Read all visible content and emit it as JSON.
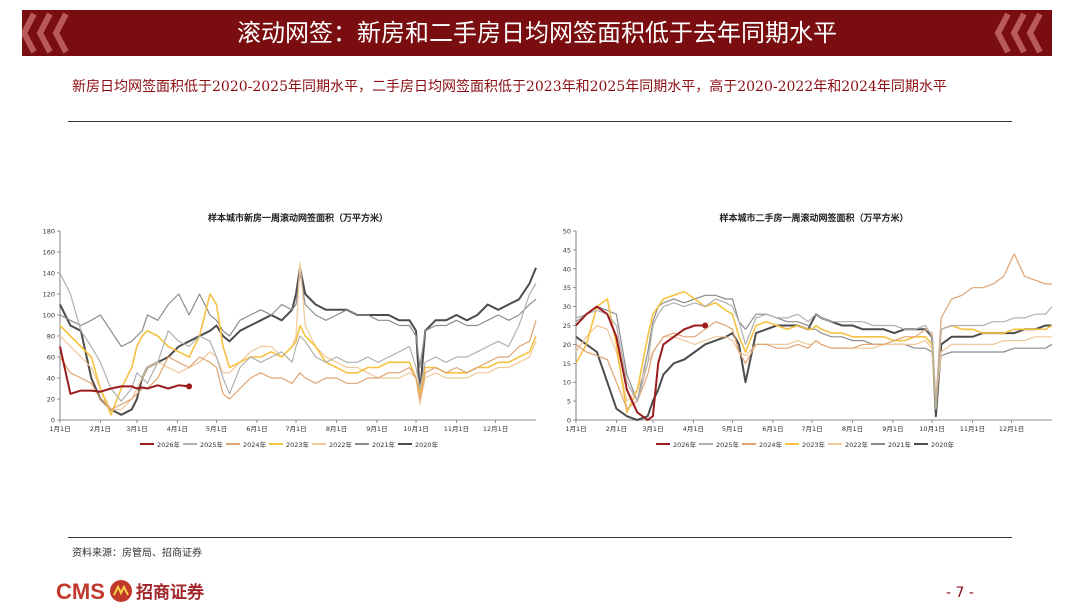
{
  "header": {
    "title": "滚动网签：新房和二手房日均网签面积低于去年同期水平"
  },
  "subtitle": "新房日均网签面积低于2020-2025年同期水平，二手房日均网签面积低于2023年和2025年同期水平，高于2020-2022年和2024年同期水平",
  "footer": {
    "source": "资料来源：房管局、招商证券",
    "logo_text": "CMS",
    "logo_cn": "招商证券",
    "page_number": "- 7 -"
  },
  "colors": {
    "banner": "#7a0d10",
    "accent": "#8b0d12"
  },
  "chart_data": [
    {
      "type": "line",
      "title": "样本城市新房一周滚动网签面积（万平方米）",
      "ylim": [
        0,
        180
      ],
      "yticks": [
        "0",
        "20",
        "40",
        "60",
        "80",
        "100",
        "120",
        "140",
        "160",
        "180"
      ],
      "xticks": [
        "1月1日",
        "2月1日",
        "3月1日",
        "4月1日",
        "5月1日",
        "6月1日",
        "7月1日",
        "8月1日",
        "9月1日",
        "10月1日",
        "11月1日",
        "12月1日"
      ],
      "x_points": [
        0,
        8,
        16,
        24,
        31,
        39,
        47,
        55,
        59,
        63,
        67,
        75,
        83,
        91,
        99,
        107,
        115,
        120,
        125,
        130,
        138,
        146,
        154,
        162,
        170,
        178,
        181,
        184,
        188,
        196,
        204,
        212,
        220,
        228,
        236,
        244,
        252,
        260,
        268,
        273,
        276,
        280,
        288,
        296,
        304,
        312,
        320,
        328,
        336,
        344,
        352,
        360,
        365
      ],
      "series": [
        {
          "name": "2026年",
          "color": "#9b1b1e",
          "width": 2,
          "values": [
            70,
            25,
            28,
            28,
            27,
            30,
            32,
            32,
            30,
            31,
            30,
            33,
            30,
            33,
            32
          ]
        },
        {
          "name": "2025年",
          "color": "#b0b0b0",
          "width": 1.2,
          "values": [
            140,
            120,
            85,
            70,
            55,
            30,
            18,
            30,
            45,
            40,
            35,
            55,
            85,
            75,
            70,
            80,
            75,
            60,
            40,
            25,
            50,
            60,
            55,
            60,
            65,
            55,
            70,
            80,
            75,
            60,
            55,
            60,
            55,
            55,
            60,
            55,
            60,
            65,
            70,
            50,
            30,
            55,
            60,
            55,
            60,
            60,
            65,
            70,
            75,
            70,
            90,
            120,
            130
          ]
        },
        {
          "name": "2024年",
          "color": "#e0a472",
          "width": 1.2,
          "values": [
            60,
            45,
            40,
            35,
            20,
            10,
            15,
            20,
            25,
            30,
            30,
            40,
            60,
            55,
            50,
            60,
            55,
            50,
            25,
            20,
            30,
            40,
            45,
            40,
            40,
            35,
            40,
            45,
            40,
            35,
            40,
            40,
            35,
            35,
            40,
            40,
            45,
            45,
            50,
            40,
            20,
            45,
            50,
            45,
            50,
            45,
            50,
            55,
            60,
            60,
            70,
            75,
            95
          ]
        },
        {
          "name": "2023年",
          "color": "#f5c242",
          "width": 1.6,
          "values": [
            90,
            80,
            70,
            60,
            30,
            5,
            30,
            50,
            70,
            80,
            85,
            80,
            70,
            65,
            60,
            80,
            120,
            110,
            70,
            50,
            55,
            60,
            60,
            65,
            60,
            70,
            75,
            90,
            80,
            70,
            55,
            50,
            45,
            45,
            50,
            50,
            55,
            55,
            55,
            40,
            25,
            50,
            50,
            45,
            45,
            45,
            50,
            50,
            55,
            55,
            60,
            65,
            80
          ]
        },
        {
          "name": "2022年",
          "color": "#f0c89a",
          "width": 1.2,
          "values": [
            80,
            70,
            60,
            50,
            30,
            10,
            10,
            20,
            30,
            40,
            50,
            55,
            50,
            45,
            50,
            55,
            65,
            60,
            45,
            45,
            55,
            65,
            70,
            70,
            60,
            70,
            80,
            150,
            90,
            70,
            60,
            55,
            50,
            50,
            45,
            40,
            40,
            40,
            45,
            40,
            15,
            40,
            45,
            40,
            40,
            40,
            45,
            45,
            50,
            50,
            55,
            60,
            75
          ]
        },
        {
          "name": "2021年",
          "color": "#8c8c8c",
          "width": 1.2,
          "values": [
            100,
            95,
            90,
            95,
            100,
            85,
            70,
            75,
            80,
            85,
            100,
            95,
            110,
            120,
            100,
            120,
            100,
            95,
            85,
            80,
            95,
            100,
            105,
            100,
            110,
            105,
            110,
            140,
            110,
            100,
            95,
            100,
            105,
            100,
            100,
            95,
            95,
            90,
            90,
            80,
            50,
            85,
            90,
            90,
            95,
            90,
            90,
            95,
            100,
            95,
            100,
            110,
            115
          ]
        },
        {
          "name": "2020年",
          "color": "#4d4d4d",
          "width": 2,
          "values": [
            110,
            90,
            85,
            40,
            20,
            10,
            5,
            10,
            20,
            40,
            50,
            55,
            60,
            70,
            75,
            80,
            85,
            90,
            80,
            75,
            85,
            90,
            95,
            100,
            95,
            105,
            120,
            145,
            120,
            110,
            105,
            105,
            105,
            100,
            100,
            100,
            100,
            95,
            95,
            85,
            25,
            85,
            95,
            95,
            100,
            95,
            100,
            110,
            105,
            110,
            115,
            130,
            145
          ]
        }
      ]
    },
    {
      "type": "line",
      "title": "样本城市二手房一周滚动网签面积（万平方米）",
      "ylim": [
        0,
        50
      ],
      "yticks": [
        "0",
        "5",
        "10",
        "15",
        "20",
        "25",
        "30",
        "35",
        "40",
        "45",
        "50"
      ],
      "xticks": [
        "1月1日",
        "2月1日",
        "3月1日",
        "4月1日",
        "5月1日",
        "6月1日",
        "7月1日",
        "8月1日",
        "9月1日",
        "10月1日",
        "11月1日",
        "12月1日"
      ],
      "x_points": [
        0,
        8,
        16,
        24,
        31,
        39,
        47,
        55,
        59,
        63,
        67,
        75,
        83,
        91,
        99,
        107,
        115,
        120,
        125,
        130,
        138,
        146,
        154,
        162,
        170,
        178,
        181,
        184,
        188,
        196,
        204,
        212,
        220,
        228,
        236,
        244,
        252,
        260,
        268,
        273,
        276,
        280,
        288,
        296,
        304,
        312,
        320,
        328,
        336,
        344,
        352,
        360,
        365
      ],
      "series": [
        {
          "name": "2026年",
          "color": "#9b1b1e",
          "width": 2,
          "values": [
            25,
            28,
            30,
            28,
            22,
            8,
            2,
            0,
            1,
            15,
            20,
            22,
            24,
            25,
            25
          ]
        },
        {
          "name": "2025年",
          "color": "#b0b0b0",
          "width": 1.2,
          "values": [
            27,
            28,
            29,
            28,
            25,
            10,
            5,
            15,
            25,
            28,
            30,
            31,
            30,
            31,
            30,
            32,
            31,
            30,
            26,
            20,
            27,
            28,
            27,
            27,
            28,
            26,
            27,
            28,
            27,
            26,
            26,
            26,
            26,
            25,
            25,
            25,
            24,
            24,
            25,
            22,
            3,
            24,
            25,
            25,
            25,
            25,
            26,
            26,
            27,
            27,
            28,
            28,
            30
          ]
        },
        {
          "name": "2024年",
          "color": "#e0a472",
          "width": 1.2,
          "values": [
            20,
            18,
            17,
            16,
            10,
            3,
            5,
            12,
            18,
            20,
            22,
            23,
            22,
            22,
            24,
            26,
            25,
            24,
            18,
            15,
            20,
            20,
            19,
            19,
            20,
            19,
            20,
            21,
            20,
            19,
            19,
            19,
            20,
            20,
            20,
            21,
            22,
            22,
            24,
            23,
            5,
            27,
            32,
            33,
            35,
            35,
            36,
            38,
            44,
            38,
            37,
            36,
            36
          ]
        },
        {
          "name": "2023年",
          "color": "#f5c242",
          "width": 1.6,
          "values": [
            15,
            20,
            30,
            32,
            20,
            2,
            8,
            22,
            28,
            30,
            32,
            33,
            34,
            32,
            30,
            31,
            29,
            28,
            22,
            18,
            25,
            26,
            25,
            24,
            25,
            24,
            24,
            25,
            24,
            23,
            23,
            22,
            22,
            22,
            22,
            21,
            21,
            22,
            22,
            20,
            3,
            24,
            25,
            24,
            24,
            23,
            23,
            23,
            24,
            24,
            24,
            24,
            25
          ]
        },
        {
          "name": "2022年",
          "color": "#f0c89a",
          "width": 1.2,
          "values": [
            18,
            22,
            25,
            24,
            18,
            5,
            8,
            15,
            18,
            20,
            22,
            22,
            21,
            20,
            21,
            22,
            22,
            21,
            18,
            17,
            20,
            20,
            20,
            20,
            21,
            20,
            20,
            21,
            20,
            19,
            19,
            19,
            19,
            19,
            20,
            20,
            20,
            20,
            21,
            19,
            5,
            18,
            20,
            20,
            20,
            20,
            20,
            21,
            21,
            21,
            22,
            22,
            22
          ]
        },
        {
          "name": "2021年",
          "color": "#8c8c8c",
          "width": 1.2,
          "values": [
            26,
            28,
            30,
            29,
            28,
            12,
            5,
            18,
            26,
            30,
            31,
            32,
            31,
            32,
            33,
            33,
            32,
            32,
            26,
            24,
            28,
            28,
            27,
            26,
            26,
            25,
            24,
            24,
            23,
            22,
            22,
            21,
            21,
            20,
            20,
            20,
            20,
            19,
            19,
            18,
            5,
            17,
            18,
            18,
            18,
            18,
            18,
            18,
            19,
            19,
            19,
            19,
            20
          ]
        },
        {
          "name": "2020年",
          "color": "#4d4d4d",
          "width": 2,
          "values": [
            22,
            20,
            18,
            10,
            3,
            1,
            0,
            1,
            5,
            8,
            12,
            15,
            16,
            18,
            20,
            21,
            22,
            23,
            20,
            10,
            23,
            24,
            25,
            25,
            25,
            24,
            26,
            28,
            27,
            26,
            25,
            25,
            24,
            24,
            24,
            23,
            24,
            24,
            24,
            22,
            1,
            20,
            22,
            22,
            22,
            23,
            23,
            23,
            23,
            24,
            24,
            25,
            25
          ]
        }
      ]
    }
  ]
}
